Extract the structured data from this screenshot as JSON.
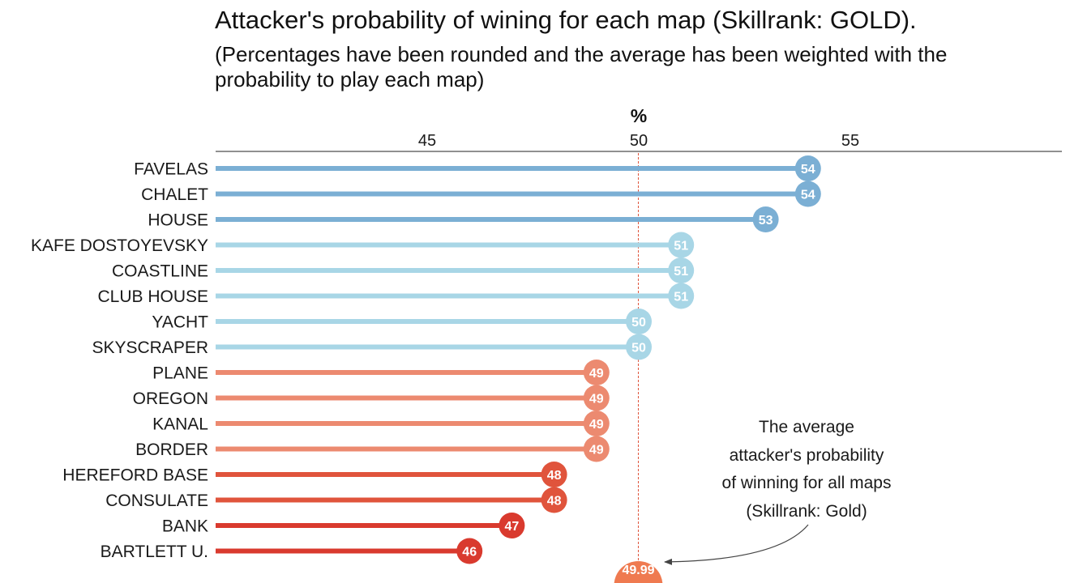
{
  "chart_data": {
    "type": "lollipop",
    "title": "Attacker's probability of wining for each map (Skillrank: GOLD).",
    "subtitle": "(Percentages have been rounded and the average has been weighted with the probability to play each map)",
    "axis_title": "%",
    "xlim": [
      40,
      60
    ],
    "x_ticks": [
      45,
      50,
      55
    ],
    "categories": [
      "FAVELAS",
      "CHALET",
      "HOUSE",
      "KAFE DOSTOYEVSKY",
      "COASTLINE",
      "CLUB HOUSE",
      "YACHT",
      "SKYSCRAPER",
      "PLANE",
      "OREGON",
      "KANAL",
      "BORDER",
      "HEREFORD BASE",
      "CONSULATE",
      "BANK",
      "BARTLETT U."
    ],
    "values": [
      54,
      54,
      53,
      51,
      51,
      51,
      50,
      50,
      49,
      49,
      49,
      49,
      48,
      48,
      47,
      46
    ],
    "average": {
      "value": 49.99,
      "label": "49.99",
      "annotation": [
        "The average",
        "attacker's probability",
        "of winning for all maps",
        "(Skillrank: Gold)"
      ]
    },
    "colors": {
      "54": "#7bafd4",
      "53": "#7bafd4",
      "51": "#a8d6e6",
      "50": "#a8d6e6",
      "49": "#ec8a70",
      "48": "#e0543c",
      "47": "#d93a2e",
      "46": "#d93a2e",
      "average": "#ef7a50",
      "reference_line": "#e0543c"
    }
  }
}
